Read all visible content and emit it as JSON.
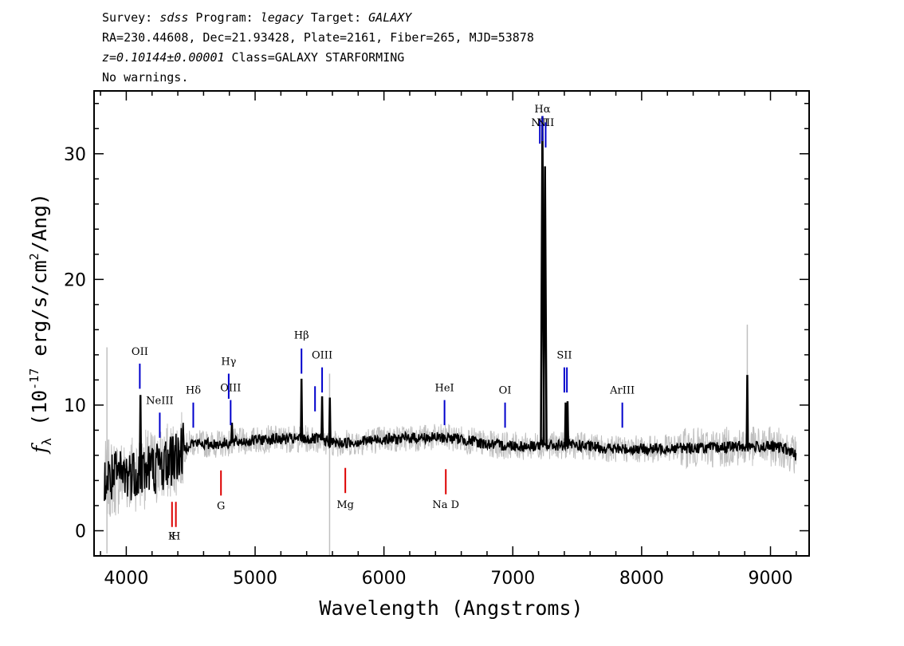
{
  "header": {
    "line1": {
      "p1": "Survey: ",
      "survey": "sdss",
      "p2": " Program: ",
      "program": "legacy",
      "p3": " Target: ",
      "target": "GALAXY"
    },
    "line2": "RA=230.44608, Dec=21.93428, Plate=2161, Fiber=265, MJD=53878",
    "line3": {
      "z": "z=0.10144±0.00001",
      "cls": " Class=GALAXY STARFORMING"
    },
    "line4": "No warnings."
  },
  "chart_data": {
    "type": "line",
    "title": "",
    "xlabel": "Wavelength (Angstroms)",
    "ylabel": "f_λ (10^-17 erg/s/cm^2/Ang)",
    "xlim": [
      3750,
      9300
    ],
    "ylim": [
      -2,
      35
    ],
    "xticks": [
      "4000",
      "5000",
      "6000",
      "7000",
      "8000",
      "9000"
    ],
    "yticks": [
      "0",
      "10",
      "20",
      "30"
    ],
    "series": [
      {
        "kind": "error-band",
        "color": "#c0c0c0"
      },
      {
        "kind": "model-fit",
        "color": "#000000",
        "x": [
          3830,
          3900,
          4000,
          4100,
          4200,
          4300,
          4400,
          4500,
          4600,
          4700,
          4800,
          4900,
          5000,
          5100,
          5200,
          5300,
          5400,
          5500,
          5600,
          5700,
          5800,
          5900,
          6000,
          6100,
          6200,
          6300,
          6400,
          6500,
          6600,
          6700,
          6800,
          6900,
          7000,
          7100,
          7200,
          7300,
          7400,
          7500,
          7600,
          7700,
          7800,
          7900,
          8000,
          8100,
          8200,
          8300,
          8400,
          8500,
          8600,
          8700,
          8800,
          8900,
          9000,
          9100,
          9200
        ],
        "y": [
          4.0,
          4.2,
          4.5,
          4.8,
          5.0,
          5.3,
          6.0,
          7.0,
          6.9,
          6.9,
          7.0,
          7.1,
          7.2,
          7.3,
          7.3,
          7.3,
          7.3,
          7.3,
          7.0,
          7.0,
          7.1,
          7.2,
          7.3,
          7.3,
          7.4,
          7.4,
          7.4,
          7.4,
          7.3,
          7.1,
          6.9,
          6.8,
          6.8,
          6.7,
          6.8,
          6.8,
          6.8,
          6.8,
          6.7,
          6.6,
          6.5,
          6.5,
          6.5,
          6.5,
          6.6,
          6.6,
          6.6,
          6.6,
          6.6,
          6.7,
          6.7,
          6.7,
          6.7,
          6.6,
          6.0
        ]
      },
      {
        "kind": "emission-peaks",
        "color": "#000000",
        "x": [
          4110,
          4360,
          4820,
          5360,
          5520,
          5580,
          7230,
          7250,
          7410,
          7425,
          8820
        ],
        "y": [
          10.8,
          7.5,
          8.6,
          12.1,
          10.7,
          10.6,
          33.0,
          29.0,
          10.2,
          10.3,
          12.4
        ]
      }
    ],
    "emission_lines": [
      {
        "label": "OII",
        "x": 4105,
        "y0": 11.3,
        "y1": 13.3,
        "label_y": 14.0
      },
      {
        "label": "NeIII",
        "x": 4260,
        "y0": 7.4,
        "y1": 9.4,
        "label_y": 10.1
      },
      {
        "label": "Hδ",
        "x": 4520,
        "y0": 8.2,
        "y1": 10.2,
        "label_y": 10.9
      },
      {
        "label": "Hγ",
        "x": 4795,
        "y0": 10.5,
        "y1": 12.5,
        "label_y": 13.2
      },
      {
        "label": "OIII",
        "x": 4810,
        "y0": 8.4,
        "y1": 10.4,
        "label_y": 11.1
      },
      {
        "label": "Hβ",
        "x": 5360,
        "y0": 12.5,
        "y1": 14.5,
        "label_y": 15.3
      },
      {
        "label": "",
        "x": 5465,
        "y0": 9.5,
        "y1": 11.5,
        "label_y": 0
      },
      {
        "label": "OIII",
        "x": 5520,
        "y0": 11.0,
        "y1": 13.0,
        "label_y": 13.7
      },
      {
        "label": "HeI",
        "x": 6470,
        "y0": 8.4,
        "y1": 10.4,
        "label_y": 11.1
      },
      {
        "label": "OI",
        "x": 6940,
        "y0": 8.2,
        "y1": 10.2,
        "label_y": 10.9
      },
      {
        "label": "NII",
        "x": 7210,
        "y0": 30.8,
        "y1": 32.8,
        "label_y": 32.2
      },
      {
        "label": "Hα",
        "x": 7230,
        "y0": 31.0,
        "y1": 33.0,
        "label_y": 33.3
      },
      {
        "label": "NII",
        "x": 7255,
        "y0": 30.5,
        "y1": 32.5,
        "label_y": 32.2
      },
      {
        "label": "SII",
        "x": 7400,
        "y0": 11.0,
        "y1": 13.0,
        "label_y": 13.7
      },
      {
        "label": "",
        "x": 7420,
        "y0": 11.0,
        "y1": 13.0,
        "label_y": 0
      },
      {
        "label": "ArIII",
        "x": 7850,
        "y0": 8.2,
        "y1": 10.2,
        "label_y": 10.9
      }
    ],
    "absorption_lines": [
      {
        "label": "K",
        "x": 4355,
        "y0": 0.3,
        "y1": 2.3,
        "label_y": -0.7
      },
      {
        "label": "H",
        "x": 4385,
        "y0": 0.3,
        "y1": 2.3,
        "label_y": -0.7
      },
      {
        "label": "G",
        "x": 4735,
        "y0": 2.8,
        "y1": 4.8,
        "label_y": 1.7
      },
      {
        "label": "Mg",
        "x": 5700,
        "y0": 3.0,
        "y1": 5.0,
        "label_y": 1.8
      },
      {
        "label": "Na D",
        "x": 6480,
        "y0": 2.9,
        "y1": 4.9,
        "label_y": 1.8
      }
    ],
    "colors": {
      "emission": "#0000cc",
      "absorption": "#dd0000",
      "flux": "#000000",
      "error": "#c0c0c0"
    }
  }
}
